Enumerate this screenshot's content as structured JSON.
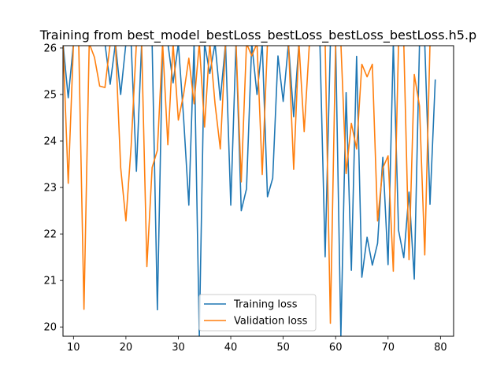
{
  "chart_data": {
    "type": "line",
    "title": "Training from best_model_bestLoss_bestLoss_bestLoss_bestLoss.h5.p",
    "xlabel": "",
    "ylabel": "",
    "xlim": [
      8,
      82.5
    ],
    "ylim": [
      19.8,
      26.05
    ],
    "xticks": [
      10,
      20,
      30,
      40,
      50,
      60,
      70,
      80
    ],
    "yticks": [
      20,
      21,
      22,
      23,
      24,
      25,
      26
    ],
    "grid": false,
    "legend_position": "lower-center",
    "series": [
      {
        "name": "Training loss",
        "color": "#1f77b4",
        "points": [
          [
            8,
            26.1
          ],
          [
            9,
            24.93
          ],
          [
            10,
            26.1
          ],
          [
            11,
            26.1
          ],
          [
            12,
            26.1
          ],
          [
            13,
            26.1
          ],
          [
            14,
            26.1
          ],
          [
            15,
            26.1
          ],
          [
            16,
            26.1
          ],
          [
            17,
            25.22
          ],
          [
            18,
            26.1
          ],
          [
            19,
            25.0
          ],
          [
            20,
            26.1
          ],
          [
            21,
            26.1
          ],
          [
            22,
            23.35
          ],
          [
            23,
            26.1
          ],
          [
            24,
            26.1
          ],
          [
            25,
            26.1
          ],
          [
            26,
            20.37
          ],
          [
            27,
            26.1
          ],
          [
            28,
            26.1
          ],
          [
            29,
            25.25
          ],
          [
            30,
            26.1
          ],
          [
            31,
            24.5
          ],
          [
            32,
            22.62
          ],
          [
            33,
            26.1
          ],
          [
            34,
            19.8
          ],
          [
            35,
            26.1
          ],
          [
            36,
            25.45
          ],
          [
            37,
            26.1
          ],
          [
            38,
            24.88
          ],
          [
            39,
            26.1
          ],
          [
            40,
            22.62
          ],
          [
            41,
            26.1
          ],
          [
            42,
            22.5
          ],
          [
            43,
            22.97
          ],
          [
            44,
            26.1
          ],
          [
            45,
            25.0
          ],
          [
            46,
            26.1
          ],
          [
            47,
            22.8
          ],
          [
            48,
            23.2
          ],
          [
            49,
            25.83
          ],
          [
            50,
            24.85
          ],
          [
            51,
            26.1
          ],
          [
            52,
            24.52
          ],
          [
            53,
            26.1
          ],
          [
            54,
            26.1
          ],
          [
            55,
            26.1
          ],
          [
            56,
            26.1
          ],
          [
            57,
            26.1
          ],
          [
            58,
            21.51
          ],
          [
            59,
            26.1
          ],
          [
            60,
            26.1
          ],
          [
            61,
            19.8
          ],
          [
            62,
            25.04
          ],
          [
            63,
            21.22
          ],
          [
            64,
            25.82
          ],
          [
            65,
            21.07
          ],
          [
            66,
            21.93
          ],
          [
            67,
            21.33
          ],
          [
            68,
            21.8
          ],
          [
            69,
            23.65
          ],
          [
            70,
            21.34
          ],
          [
            71,
            26.1
          ],
          [
            72,
            22.08
          ],
          [
            73,
            21.49
          ],
          [
            74,
            22.9
          ],
          [
            75,
            21.03
          ],
          [
            76,
            26.1
          ],
          [
            77,
            26.1
          ],
          [
            78,
            22.64
          ],
          [
            79,
            25.31
          ]
        ]
      },
      {
        "name": "Validation loss",
        "color": "#ff7f0e",
        "points": [
          [
            8,
            26.1
          ],
          [
            9,
            23.09
          ],
          [
            10,
            26.1
          ],
          [
            11,
            26.1
          ],
          [
            12,
            20.38
          ],
          [
            13,
            26.1
          ],
          [
            14,
            25.8
          ],
          [
            15,
            25.18
          ],
          [
            16,
            25.15
          ],
          [
            17,
            26.1
          ],
          [
            18,
            26.1
          ],
          [
            19,
            23.43
          ],
          [
            20,
            22.28
          ],
          [
            21,
            23.9
          ],
          [
            22,
            26.1
          ],
          [
            23,
            26.1
          ],
          [
            24,
            21.3
          ],
          [
            25,
            23.43
          ],
          [
            26,
            23.8
          ],
          [
            27,
            26.1
          ],
          [
            28,
            23.92
          ],
          [
            29,
            26.1
          ],
          [
            30,
            24.45
          ],
          [
            31,
            25.0
          ],
          [
            32,
            25.78
          ],
          [
            33,
            24.8
          ],
          [
            34,
            26.1
          ],
          [
            35,
            24.3
          ],
          [
            36,
            26.1
          ],
          [
            37,
            24.8
          ],
          [
            38,
            23.83
          ],
          [
            39,
            26.1
          ],
          [
            40,
            26.1
          ],
          [
            41,
            26.1
          ],
          [
            42,
            23.12
          ],
          [
            43,
            26.1
          ],
          [
            44,
            25.83
          ],
          [
            45,
            26.1
          ],
          [
            46,
            23.28
          ],
          [
            47,
            26.1
          ],
          [
            48,
            26.1
          ],
          [
            49,
            26.1
          ],
          [
            50,
            26.1
          ],
          [
            51,
            26.1
          ],
          [
            52,
            23.39
          ],
          [
            53,
            26.1
          ],
          [
            54,
            24.2
          ],
          [
            55,
            26.1
          ],
          [
            56,
            26.1
          ],
          [
            57,
            26.1
          ],
          [
            58,
            26.1
          ],
          [
            59,
            20.08
          ],
          [
            60,
            26.1
          ],
          [
            61,
            26.1
          ],
          [
            62,
            23.3
          ],
          [
            63,
            24.38
          ],
          [
            64,
            23.83
          ],
          [
            65,
            25.65
          ],
          [
            66,
            25.38
          ],
          [
            67,
            25.65
          ],
          [
            68,
            22.28
          ],
          [
            69,
            23.42
          ],
          [
            70,
            23.68
          ],
          [
            71,
            21.2
          ],
          [
            72,
            26.1
          ],
          [
            73,
            26.1
          ],
          [
            74,
            21.45
          ],
          [
            75,
            25.43
          ],
          [
            76,
            24.75
          ],
          [
            77,
            21.55
          ],
          [
            78,
            26.1
          ],
          [
            79,
            26.1
          ]
        ]
      }
    ]
  }
}
